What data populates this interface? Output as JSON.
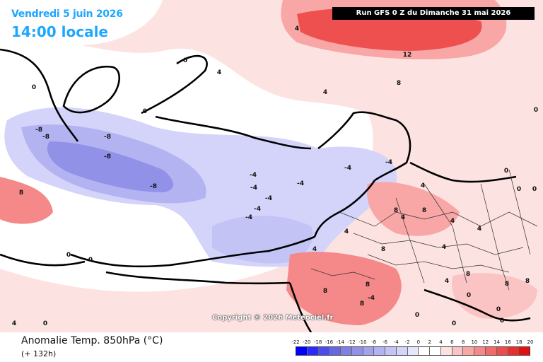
{
  "header": {
    "valid_date": "Vendredi 5 juin 2026",
    "valid_time": "14:00 locale",
    "run_info": "Run GFS 0 Z du Dimanche 31 mai 2026"
  },
  "footer": {
    "field_title": "Anomalie Temp. 850hPa (°C)",
    "lead_time": "(+ 132h)",
    "copyright": "Copyright © 2026 Meteociel.fr"
  },
  "legend": {
    "ticks": [
      "-22",
      "-20",
      "-18",
      "-16",
      "-14",
      "-12",
      "-10",
      "-8",
      "-6",
      "-4",
      "-2",
      "0",
      "2",
      "4",
      "6",
      "8",
      "10",
      "12",
      "14",
      "16",
      "18",
      "20"
    ],
    "colors": [
      "#0000ff",
      "#2a2aff",
      "#4b4bf0",
      "#6666e6",
      "#7f7fe6",
      "#9191e8",
      "#a3a3ee",
      "#b3b3f2",
      "#c3c3f6",
      "#d4d4fa",
      "#e6e6fc",
      "#ffffff",
      "#ffffff",
      "#fde2e2",
      "#fbc4c4",
      "#f8a6a6",
      "#f58888",
      "#f26a6a",
      "#ee4c4c",
      "#ea2e2e",
      "#e41010"
    ]
  },
  "map_labels": [
    "12",
    "8",
    "4",
    "4",
    "4",
    "0",
    "0",
    "0",
    "-8",
    "-8",
    "-8",
    "-8",
    "-8",
    "-4",
    "-4",
    "-4",
    "-4",
    "-4",
    "-4",
    "-4",
    "-4",
    "8",
    "4",
    "0",
    "4",
    "4",
    "8",
    "8",
    "8",
    "8",
    "4",
    "0",
    "0",
    "0",
    "4",
    "4",
    "8",
    "8",
    "8",
    "-4",
    "0",
    "0",
    "0",
    "4",
    "0",
    "4",
    "4",
    "0",
    "0",
    "8",
    "0",
    "8",
    "0"
  ]
}
